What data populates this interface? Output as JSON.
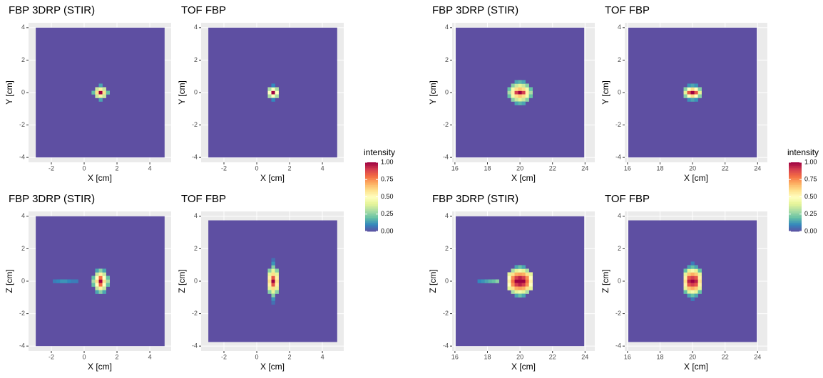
{
  "chart_data": [
    {
      "type": "heatmap",
      "title": "FBP 3DRP (STIR)",
      "xlabel": "X [cm]",
      "ylabel": "Y [cm]",
      "xlim": [
        -3.39,
        5.3
      ],
      "ylim": [
        -4.3,
        4.3
      ],
      "xticks": [
        -2,
        0,
        2,
        4
      ],
      "yticks": [
        -4,
        -2,
        0,
        2,
        4
      ],
      "extent": [
        -2.95,
        4.9,
        -4,
        4
      ],
      "fill_value": 0,
      "cell": [
        0.22,
        0.22
      ],
      "rows": [
        {
          "y": 0,
          "x0": 0.56,
          "values": [
            0.2,
            0.6,
            1,
            0.6,
            0.2
          ]
        },
        {
          "y": 0.22,
          "x0": 0.78,
          "values": [
            0.35,
            0.55,
            0.35
          ]
        },
        {
          "y": -0.22,
          "x0": 0.78,
          "values": [
            0.35,
            0.55,
            0.35
          ]
        },
        {
          "y": 0.44,
          "x0": 1,
          "values": [
            0.15
          ]
        },
        {
          "y": -0.44,
          "x0": 1,
          "values": [
            0.15
          ]
        }
      ]
    },
    {
      "type": "heatmap",
      "title": "TOF FBP",
      "xlabel": "X [cm]",
      "ylabel": "Y [cm]",
      "xlim": [
        -3.39,
        5.3
      ],
      "ylim": [
        -4.3,
        4.3
      ],
      "xticks": [
        -2,
        0,
        2,
        4
      ],
      "yticks": [
        -4,
        -2,
        0,
        2,
        4
      ],
      "extent": [
        -2.95,
        4.9,
        -4,
        4
      ],
      "fill_value": 0,
      "cell": [
        0.22,
        0.22
      ],
      "rows": [
        {
          "y": 0,
          "x0": 0.78,
          "values": [
            0.5,
            1,
            0.5
          ]
        },
        {
          "y": 0.22,
          "x0": 0.78,
          "values": [
            0.3,
            0.5,
            0.3
          ]
        },
        {
          "y": -0.22,
          "x0": 0.78,
          "values": [
            0.3,
            0.5,
            0.3
          ]
        },
        {
          "y": 0.44,
          "x0": 1,
          "values": [
            0.1
          ]
        },
        {
          "y": -0.44,
          "x0": 1,
          "values": [
            0.1
          ]
        }
      ]
    },
    {
      "type": "heatmap",
      "title": "FBP 3DRP (STIR)",
      "xlabel": "X [cm]",
      "ylabel": "Y [cm]",
      "xlim": [
        15.83,
        24.6
      ],
      "ylim": [
        -4.3,
        4.3
      ],
      "xticks": [
        16,
        18,
        20,
        22,
        24
      ],
      "yticks": [
        -4,
        -2,
        0,
        2,
        4
      ],
      "extent": [
        16.05,
        23.95,
        -4,
        4
      ],
      "fill_value": 0,
      "cell": [
        0.22,
        0.22
      ],
      "rows": [
        {
          "y": 0,
          "x0": 19.34,
          "values": [
            0.3,
            0.55,
            0.9,
            1,
            0.9,
            0.55,
            0.3
          ]
        },
        {
          "y": 0.22,
          "x0": 19.34,
          "values": [
            0.2,
            0.45,
            0.6,
            0.65,
            0.6,
            0.45,
            0.2
          ]
        },
        {
          "y": -0.22,
          "x0": 19.34,
          "values": [
            0.2,
            0.45,
            0.6,
            0.65,
            0.6,
            0.45,
            0.2
          ]
        },
        {
          "y": 0.44,
          "x0": 19.56,
          "values": [
            0.25,
            0.35,
            0.4,
            0.35,
            0.25
          ]
        },
        {
          "y": -0.44,
          "x0": 19.56,
          "values": [
            0.25,
            0.35,
            0.4,
            0.35,
            0.25
          ]
        },
        {
          "y": 0.66,
          "x0": 19.78,
          "values": [
            0.15,
            0.18,
            0.15
          ]
        },
        {
          "y": -0.66,
          "x0": 19.78,
          "values": [
            0.15,
            0.18,
            0.15
          ]
        }
      ]
    },
    {
      "type": "heatmap",
      "title": "TOF FBP",
      "xlabel": "X [cm]",
      "ylabel": "Y [cm]",
      "xlim": [
        15.83,
        24.6
      ],
      "ylim": [
        -4.3,
        4.3
      ],
      "xticks": [
        16,
        18,
        20,
        22,
        24
      ],
      "yticks": [
        -4,
        -2,
        0,
        2,
        4
      ],
      "extent": [
        16.05,
        23.95,
        -4,
        4
      ],
      "fill_value": 0,
      "cell": [
        0.22,
        0.22
      ],
      "rows": [
        {
          "y": 0,
          "x0": 19.56,
          "values": [
            0.4,
            0.85,
            1,
            0.85,
            0.4
          ]
        },
        {
          "y": 0.22,
          "x0": 19.56,
          "values": [
            0.25,
            0.5,
            0.6,
            0.5,
            0.25
          ]
        },
        {
          "y": -0.22,
          "x0": 19.56,
          "values": [
            0.25,
            0.5,
            0.6,
            0.5,
            0.25
          ]
        },
        {
          "y": 0.44,
          "x0": 19.78,
          "values": [
            0.12,
            0.15,
            0.12
          ]
        },
        {
          "y": -0.44,
          "x0": 19.78,
          "values": [
            0.12,
            0.15,
            0.12
          ]
        }
      ]
    },
    {
      "type": "heatmap",
      "title": "FBP 3DRP (STIR)",
      "xlabel": "X [cm]",
      "ylabel": "Z [cm]",
      "xlim": [
        -3.39,
        5.3
      ],
      "ylim": [
        -4.3,
        4.3
      ],
      "xticks": [
        -2,
        0,
        2,
        4
      ],
      "yticks": [
        -4,
        -2,
        0,
        2,
        4
      ],
      "extent": [
        -2.95,
        4.9,
        -4,
        4
      ],
      "fill_value": 0,
      "cell": [
        0.22,
        0.22
      ],
      "rows": [
        {
          "y": 0,
          "x0": -1.8,
          "values": [
            0.08,
            0.1,
            0.12,
            0.12,
            0.1,
            0.08,
            0.08
          ]
        },
        {
          "y": 0,
          "x0": 0.56,
          "values": [
            0.3,
            0.6,
            1,
            0.6,
            0.3
          ]
        },
        {
          "y": 0.22,
          "x0": 0.56,
          "values": [
            0.2,
            0.5,
            0.8,
            0.5,
            0.2
          ]
        },
        {
          "y": -0.22,
          "x0": 0.56,
          "values": [
            0.2,
            0.5,
            0.8,
            0.5,
            0.2
          ]
        },
        {
          "y": 0.44,
          "x0": 0.78,
          "values": [
            0.35,
            0.55,
            0.35
          ]
        },
        {
          "y": -0.44,
          "x0": 0.78,
          "values": [
            0.35,
            0.55,
            0.35
          ]
        },
        {
          "y": 0.66,
          "x0": 0.78,
          "values": [
            0.15,
            0.25,
            0.15
          ]
        },
        {
          "y": -0.66,
          "x0": 0.78,
          "values": [
            0.15,
            0.25,
            0.15
          ]
        }
      ]
    },
    {
      "type": "heatmap",
      "title": "TOF FBP",
      "xlabel": "X [cm]",
      "ylabel": "Z [cm]",
      "xlim": [
        -3.39,
        5.3
      ],
      "ylim": [
        -4.3,
        4.3
      ],
      "xticks": [
        -2,
        0,
        2,
        4
      ],
      "yticks": [
        -4,
        -2,
        0,
        2,
        4
      ],
      "extent": [
        -2.95,
        4.9,
        -3.75,
        3.75
      ],
      "fill_value": 0,
      "cell": [
        0.22,
        0.22
      ],
      "rows": [
        {
          "y": 0,
          "x0": 0.78,
          "values": [
            0.6,
            1,
            0.6
          ]
        },
        {
          "y": 0.22,
          "x0": 0.78,
          "values": [
            0.55,
            0.85,
            0.55
          ]
        },
        {
          "y": -0.22,
          "x0": 0.78,
          "values": [
            0.55,
            0.85,
            0.55
          ]
        },
        {
          "y": 0.44,
          "x0": 0.78,
          "values": [
            0.4,
            0.6,
            0.4
          ]
        },
        {
          "y": -0.44,
          "x0": 0.78,
          "values": [
            0.4,
            0.6,
            0.4
          ]
        },
        {
          "y": 0.66,
          "x0": 0.78,
          "values": [
            0.25,
            0.4,
            0.25
          ]
        },
        {
          "y": -0.66,
          "x0": 0.78,
          "values": [
            0.25,
            0.4,
            0.25
          ]
        },
        {
          "y": 0.88,
          "x0": 1,
          "values": [
            0.25
          ]
        },
        {
          "y": -0.88,
          "x0": 1,
          "values": [
            0.25
          ]
        },
        {
          "y": 1.1,
          "x0": 1,
          "values": [
            0.12
          ]
        },
        {
          "y": -1.1,
          "x0": 1,
          "values": [
            0.12
          ]
        },
        {
          "y": 1.32,
          "x0": 1,
          "values": [
            0.06
          ]
        },
        {
          "y": -1.32,
          "x0": 1,
          "values": [
            0.06
          ]
        }
      ]
    },
    {
      "type": "heatmap",
      "title": "FBP 3DRP (STIR)",
      "xlabel": "X [cm]",
      "ylabel": "Z [cm]",
      "xlim": [
        15.83,
        24.6
      ],
      "ylim": [
        -4.3,
        4.3
      ],
      "xticks": [
        16,
        18,
        20,
        22,
        24
      ],
      "yticks": [
        -4,
        -2,
        0,
        2,
        4
      ],
      "extent": [
        16.05,
        23.95,
        -4,
        4
      ],
      "fill_value": 0,
      "cell": [
        0.22,
        0.22
      ],
      "rows": [
        {
          "y": 0,
          "x0": 17.5,
          "values": [
            0.1,
            0.12,
            0.15,
            0.18,
            0.2,
            0.25
          ]
        },
        {
          "y": 0,
          "x0": 19.34,
          "values": [
            0.55,
            0.8,
            1,
            1,
            1,
            0.8,
            0.55
          ]
        },
        {
          "y": 0.22,
          "x0": 19.34,
          "values": [
            0.5,
            0.75,
            0.9,
            0.95,
            0.9,
            0.75,
            0.5
          ]
        },
        {
          "y": -0.22,
          "x0": 19.34,
          "values": [
            0.5,
            0.75,
            0.9,
            0.95,
            0.9,
            0.75,
            0.5
          ]
        },
        {
          "y": 0.44,
          "x0": 19.34,
          "values": [
            0.4,
            0.6,
            0.7,
            0.72,
            0.7,
            0.6,
            0.4
          ]
        },
        {
          "y": -0.44,
          "x0": 19.34,
          "values": [
            0.4,
            0.6,
            0.7,
            0.72,
            0.7,
            0.6,
            0.4
          ]
        },
        {
          "y": 0.66,
          "x0": 19.56,
          "values": [
            0.3,
            0.4,
            0.45,
            0.4,
            0.3
          ]
        },
        {
          "y": -0.66,
          "x0": 19.56,
          "values": [
            0.3,
            0.4,
            0.45,
            0.4,
            0.3
          ]
        },
        {
          "y": 0.88,
          "x0": 19.78,
          "values": [
            0.15,
            0.2,
            0.15
          ]
        },
        {
          "y": -0.88,
          "x0": 19.78,
          "values": [
            0.15,
            0.2,
            0.15
          ]
        }
      ]
    },
    {
      "type": "heatmap",
      "title": "TOF FBP",
      "xlabel": "X [cm]",
      "ylabel": "Z [cm]",
      "xlim": [
        15.83,
        24.6
      ],
      "ylim": [
        -4.3,
        4.3
      ],
      "xticks": [
        16,
        18,
        20,
        22,
        24
      ],
      "yticks": [
        -4,
        -2,
        0,
        2,
        4
      ],
      "extent": [
        16.05,
        23.95,
        -3.75,
        3.75
      ],
      "fill_value": 0,
      "cell": [
        0.22,
        0.22
      ],
      "rows": [
        {
          "y": 0,
          "x0": 19.56,
          "values": [
            0.6,
            0.95,
            1,
            0.95,
            0.6
          ]
        },
        {
          "y": 0.22,
          "x0": 19.56,
          "values": [
            0.55,
            0.85,
            0.9,
            0.85,
            0.55
          ]
        },
        {
          "y": -0.22,
          "x0": 19.56,
          "values": [
            0.55,
            0.85,
            0.9,
            0.85,
            0.55
          ]
        },
        {
          "y": 0.44,
          "x0": 19.56,
          "values": [
            0.4,
            0.65,
            0.7,
            0.65,
            0.4
          ]
        },
        {
          "y": -0.44,
          "x0": 19.56,
          "values": [
            0.4,
            0.65,
            0.7,
            0.65,
            0.4
          ]
        },
        {
          "y": 0.66,
          "x0": 19.56,
          "values": [
            0.2,
            0.4,
            0.45,
            0.4,
            0.2
          ]
        },
        {
          "y": -0.66,
          "x0": 19.56,
          "values": [
            0.2,
            0.4,
            0.45,
            0.4,
            0.2
          ]
        },
        {
          "y": 0.88,
          "x0": 19.78,
          "values": [
            0.15,
            0.2,
            0.15
          ]
        },
        {
          "y": -0.88,
          "x0": 19.78,
          "values": [
            0.15,
            0.2,
            0.15
          ]
        },
        {
          "y": 1.1,
          "x0": 20,
          "values": [
            0.08
          ]
        },
        {
          "y": -1.1,
          "x0": 20,
          "values": [
            0.08
          ]
        }
      ]
    }
  ],
  "legends": [
    {
      "title": "intensity",
      "lim": [
        0,
        1
      ],
      "colors": [
        "#5e4fa2",
        "#3288bd",
        "#66c2a5",
        "#abdda4",
        "#e6f598",
        "#ffffbf",
        "#fee08b",
        "#fdae61",
        "#f46d43",
        "#d53e4f",
        "#9e0142"
      ],
      "ticks": [
        {
          "value": 0,
          "label": "0.00"
        },
        {
          "value": 0.25,
          "label": "0.25"
        },
        {
          "value": 0.5,
          "label": "0.50"
        },
        {
          "value": 0.75,
          "label": "0.75"
        },
        {
          "value": 1,
          "label": "1.00"
        }
      ]
    },
    {
      "title": "intensity",
      "lim": [
        0,
        1
      ],
      "colors": [
        "#5e4fa2",
        "#3288bd",
        "#66c2a5",
        "#abdda4",
        "#e6f598",
        "#ffffbf",
        "#fee08b",
        "#fdae61",
        "#f46d43",
        "#d53e4f",
        "#9e0142"
      ],
      "ticks": [
        {
          "value": 0,
          "label": "0.00"
        },
        {
          "value": 0.25,
          "label": "0.25"
        },
        {
          "value": 0.5,
          "label": "0.50"
        },
        {
          "value": 0.75,
          "label": "0.75"
        },
        {
          "value": 1,
          "label": "1.00"
        }
      ]
    }
  ]
}
